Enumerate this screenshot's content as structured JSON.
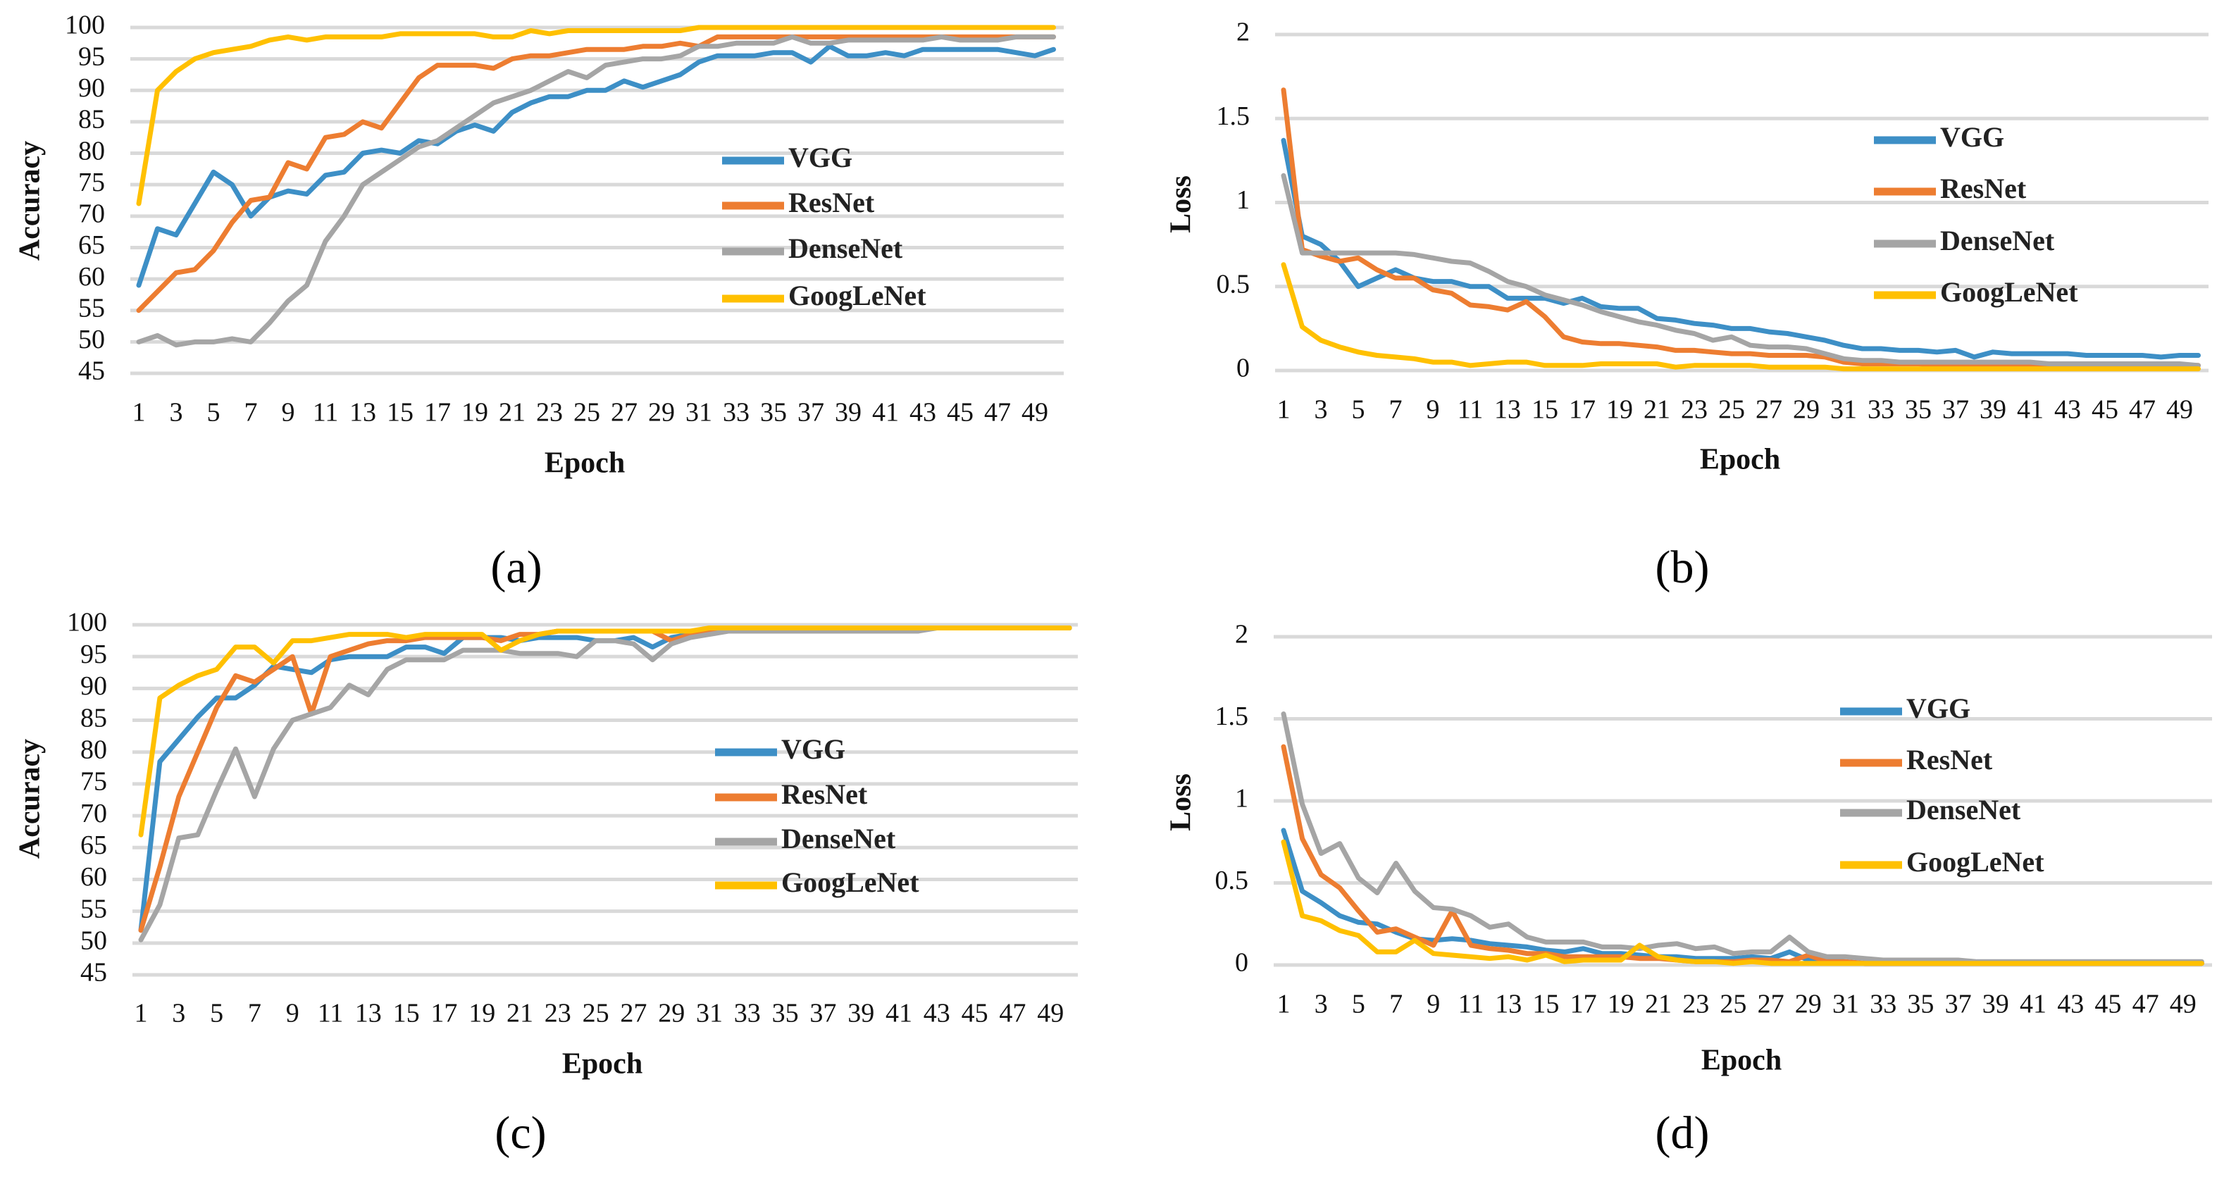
{
  "chart_data": [
    {
      "type": "line",
      "panel": "a",
      "panel_label": "(a)",
      "xlabel": "Epoch",
      "ylabel": "Accuracy",
      "ylim": [
        45,
        100
      ],
      "yticks": [
        45,
        50,
        55,
        60,
        65,
        70,
        75,
        80,
        85,
        90,
        95,
        100
      ],
      "xticks": [
        1,
        3,
        5,
        7,
        9,
        11,
        13,
        15,
        17,
        19,
        21,
        23,
        25,
        27,
        29,
        31,
        33,
        35,
        37,
        39,
        41,
        43,
        45,
        47,
        49
      ],
      "x_range": [
        1,
        50
      ],
      "grid": true,
      "legend": "right-middle",
      "series": [
        {
          "name": "VGG",
          "color": "#3d8fc6",
          "values": [
            59,
            68,
            67,
            72,
            77,
            75,
            70,
            73,
            74,
            73.5,
            76.5,
            77,
            80,
            80.5,
            80,
            82,
            81.5,
            83.5,
            84.5,
            83.5,
            86.5,
            88,
            89,
            89,
            90,
            90,
            91.5,
            90.5,
            91.5,
            92.5,
            94.5,
            95.5,
            95.5,
            95.5,
            96,
            96,
            94.5,
            97,
            95.5,
            95.5,
            96,
            95.5,
            96.5,
            96.5,
            96.5,
            96.5,
            96.5,
            96,
            95.5,
            96.5
          ]
        },
        {
          "name": "ResNet",
          "color": "#ed7d31",
          "values": [
            55,
            58,
            61,
            61.5,
            64.5,
            69,
            72.5,
            73,
            78.5,
            77.5,
            82.5,
            83,
            85,
            84,
            88,
            92,
            94,
            94,
            94,
            93.5,
            95,
            95.5,
            95.5,
            96,
            96.5,
            96.5,
            96.5,
            97,
            97,
            97.5,
            97,
            98.5,
            98.5,
            98.5,
            98.5,
            98.5,
            98.5,
            98.5,
            98.5,
            98.5,
            98.5,
            98.5,
            98.5,
            98.5,
            98.5,
            98.5,
            98.5,
            98.5,
            98.5,
            98.5
          ]
        },
        {
          "name": "DenseNet",
          "color": "#a5a5a5",
          "values": [
            50,
            51,
            49.5,
            50,
            50,
            50.5,
            50,
            53,
            56.5,
            59,
            66,
            70,
            75,
            77,
            79,
            81,
            82,
            84,
            86,
            88,
            89,
            90,
            91.5,
            93,
            92,
            94,
            94.5,
            95,
            95,
            95.5,
            97,
            97,
            97.5,
            97.5,
            97.5,
            98.5,
            97.5,
            97.5,
            98,
            98,
            98,
            98,
            98,
            98.5,
            98,
            98,
            98,
            98.5,
            98.5,
            98.5
          ]
        },
        {
          "name": "GoogLeNet",
          "color": "#ffc000",
          "values": [
            72,
            90,
            93,
            95,
            96,
            96.5,
            97,
            98,
            98.5,
            98,
            98.5,
            98.5,
            98.5,
            98.5,
            99,
            99,
            99,
            99,
            99,
            98.5,
            98.5,
            99.5,
            99,
            99.5,
            99.5,
            99.5,
            99.5,
            99.5,
            99.5,
            99.5,
            100,
            100,
            100,
            100,
            100,
            100,
            100,
            100,
            100,
            100,
            100,
            100,
            100,
            100,
            100,
            100,
            100,
            100,
            100,
            100
          ]
        }
      ]
    },
    {
      "type": "line",
      "panel": "b",
      "panel_label": "(b)",
      "xlabel": "Epoch",
      "ylabel": "Loss",
      "ylim": [
        0,
        2
      ],
      "yticks": [
        "0",
        "0.5",
        "1",
        "1.5",
        "2"
      ],
      "xticks": [
        1,
        3,
        5,
        7,
        9,
        11,
        13,
        15,
        17,
        19,
        21,
        23,
        25,
        27,
        29,
        31,
        33,
        35,
        37,
        39,
        41,
        43,
        45,
        47,
        49
      ],
      "x_range": [
        1,
        50
      ],
      "grid": true,
      "legend": "right-middle",
      "series": [
        {
          "name": "VGG",
          "color": "#3d8fc6",
          "values": [
            1.37,
            0.8,
            0.75,
            0.65,
            0.5,
            0.55,
            0.6,
            0.55,
            0.53,
            0.53,
            0.5,
            0.5,
            0.43,
            0.43,
            0.43,
            0.4,
            0.43,
            0.38,
            0.37,
            0.37,
            0.31,
            0.3,
            0.28,
            0.27,
            0.25,
            0.25,
            0.23,
            0.22,
            0.2,
            0.18,
            0.15,
            0.13,
            0.13,
            0.12,
            0.12,
            0.11,
            0.12,
            0.08,
            0.11,
            0.1,
            0.1,
            0.1,
            0.1,
            0.09,
            0.09,
            0.09,
            0.09,
            0.08,
            0.09,
            0.09
          ]
        },
        {
          "name": "ResNet",
          "color": "#ed7d31",
          "values": [
            1.67,
            0.72,
            0.68,
            0.65,
            0.67,
            0.6,
            0.55,
            0.55,
            0.48,
            0.46,
            0.39,
            0.38,
            0.36,
            0.41,
            0.32,
            0.2,
            0.17,
            0.16,
            0.16,
            0.15,
            0.14,
            0.12,
            0.12,
            0.11,
            0.1,
            0.1,
            0.09,
            0.09,
            0.09,
            0.08,
            0.05,
            0.04,
            0.04,
            0.04,
            0.04,
            0.03,
            0.03,
            0.03,
            0.03,
            0.03,
            0.03,
            0.03,
            0.03,
            0.03,
            0.03,
            0.03,
            0.03,
            0.03,
            0.03,
            0.03
          ]
        },
        {
          "name": "DenseNet",
          "color": "#a5a5a5",
          "values": [
            1.16,
            0.7,
            0.7,
            0.7,
            0.7,
            0.7,
            0.7,
            0.69,
            0.67,
            0.65,
            0.64,
            0.59,
            0.53,
            0.5,
            0.45,
            0.42,
            0.39,
            0.35,
            0.32,
            0.29,
            0.27,
            0.24,
            0.22,
            0.18,
            0.2,
            0.15,
            0.14,
            0.14,
            0.13,
            0.1,
            0.07,
            0.06,
            0.06,
            0.05,
            0.05,
            0.05,
            0.05,
            0.05,
            0.05,
            0.05,
            0.05,
            0.04,
            0.04,
            0.04,
            0.04,
            0.04,
            0.04,
            0.04,
            0.04,
            0.03
          ]
        },
        {
          "name": "GoogLeNet",
          "color": "#ffc000",
          "values": [
            0.63,
            0.26,
            0.18,
            0.14,
            0.11,
            0.09,
            0.08,
            0.07,
            0.05,
            0.05,
            0.03,
            0.04,
            0.05,
            0.05,
            0.03,
            0.03,
            0.03,
            0.04,
            0.04,
            0.04,
            0.04,
            0.02,
            0.03,
            0.03,
            0.03,
            0.03,
            0.02,
            0.02,
            0.02,
            0.02,
            0.01,
            0.01,
            0.01,
            0.01,
            0.01,
            0.01,
            0.01,
            0.01,
            0.01,
            0.01,
            0.01,
            0.01,
            0.01,
            0.01,
            0.01,
            0.01,
            0.01,
            0.01,
            0.01,
            0.01
          ]
        }
      ]
    },
    {
      "type": "line",
      "panel": "c",
      "panel_label": "(c)",
      "xlabel": "Epoch",
      "ylabel": "Accuracy",
      "ylim": [
        45,
        100
      ],
      "yticks": [
        45,
        50,
        55,
        60,
        65,
        70,
        75,
        80,
        85,
        90,
        95,
        100
      ],
      "xticks": [
        1,
        3,
        5,
        7,
        9,
        11,
        13,
        15,
        17,
        19,
        21,
        23,
        25,
        27,
        29,
        31,
        33,
        35,
        37,
        39,
        41,
        43,
        45,
        47,
        49
      ],
      "x_range": [
        1,
        50
      ],
      "grid": true,
      "legend": "right-middle",
      "series": [
        {
          "name": "VGG",
          "color": "#3d8fc6",
          "values": [
            52,
            78.5,
            82,
            85.5,
            88.5,
            88.5,
            90.5,
            93.5,
            93,
            92.5,
            94.5,
            95,
            95,
            95,
            96.5,
            96.5,
            95.5,
            98,
            98,
            98,
            97.5,
            98,
            98,
            98,
            97.5,
            97.5,
            98,
            96.5,
            98,
            98.5,
            99,
            99.5,
            99.5,
            99.5,
            99.5,
            99.5,
            99.5,
            99.5,
            99.5,
            99.5,
            99.5,
            99.5,
            99.5,
            99.5,
            99.5,
            99.5,
            99.5,
            99.5,
            99.5,
            99.5
          ]
        },
        {
          "name": "ResNet",
          "color": "#ed7d31",
          "values": [
            52,
            62,
            73,
            80,
            87,
            92,
            91,
            93,
            95,
            86,
            95,
            96,
            97,
            97.5,
            97.5,
            98,
            98,
            98,
            98,
            97.5,
            98.5,
            98.5,
            99,
            99,
            99,
            99,
            99,
            99,
            97.5,
            98.5,
            99,
            99.5,
            99.5,
            99.5,
            99.5,
            99.5,
            99.5,
            99.5,
            99.5,
            99.5,
            99.5,
            99.5,
            99.5,
            99.5,
            99.5,
            99.5,
            99.5,
            99.5,
            99.5,
            99.5
          ]
        },
        {
          "name": "DenseNet",
          "color": "#a5a5a5",
          "values": [
            50.5,
            56,
            66.5,
            67,
            74,
            80.5,
            73,
            80.5,
            85,
            86,
            87,
            90.5,
            89,
            93,
            94.5,
            94.5,
            94.5,
            96,
            96,
            96,
            95.5,
            95.5,
            95.5,
            95,
            97.5,
            97.5,
            97,
            94.5,
            97,
            98,
            98.5,
            99,
            99,
            99,
            99,
            99,
            99,
            99,
            99,
            99,
            99,
            99,
            99.5,
            99.5,
            99.5,
            99.5,
            99.5,
            99.5,
            99.5,
            99.5
          ]
        },
        {
          "name": "GoogLeNet",
          "color": "#ffc000",
          "values": [
            67,
            88.5,
            90.5,
            92,
            93,
            96.5,
            96.5,
            94,
            97.5,
            97.5,
            98,
            98.5,
            98.5,
            98.5,
            98,
            98.5,
            98.5,
            98.5,
            98.5,
            96,
            97.5,
            98.5,
            99,
            99,
            99,
            99,
            99,
            99,
            99,
            99,
            99.5,
            99.5,
            99.5,
            99.5,
            99.5,
            99.5,
            99.5,
            99.5,
            99.5,
            99.5,
            99.5,
            99.5,
            99.5,
            99.5,
            99.5,
            99.5,
            99.5,
            99.5,
            99.5,
            99.5
          ]
        }
      ]
    },
    {
      "type": "line",
      "panel": "d",
      "panel_label": "(d)",
      "xlabel": "Epoch",
      "ylabel": "Loss",
      "ylim": [
        0,
        2
      ],
      "yticks": [
        "0",
        "0.5",
        "1",
        "1.5",
        "2"
      ],
      "xticks": [
        1,
        3,
        5,
        7,
        9,
        11,
        13,
        15,
        17,
        19,
        21,
        23,
        25,
        27,
        29,
        31,
        33,
        35,
        37,
        39,
        41,
        43,
        45,
        47,
        49
      ],
      "x_range": [
        1,
        50
      ],
      "grid": true,
      "legend": "right-middle",
      "series": [
        {
          "name": "VGG",
          "color": "#3d8fc6",
          "values": [
            0.82,
            0.45,
            0.38,
            0.3,
            0.26,
            0.25,
            0.2,
            0.16,
            0.15,
            0.16,
            0.15,
            0.13,
            0.12,
            0.11,
            0.09,
            0.08,
            0.1,
            0.07,
            0.07,
            0.06,
            0.05,
            0.05,
            0.04,
            0.04,
            0.04,
            0.05,
            0.04,
            0.08,
            0.03,
            0.03,
            0.02,
            0.01,
            0.01,
            0.01,
            0.01,
            0.01,
            0.01,
            0.01,
            0.01,
            0.01,
            0.01,
            0.01,
            0.01,
            0.01,
            0.01,
            0.01,
            0.01,
            0.01,
            0.01,
            0.01
          ]
        },
        {
          "name": "ResNet",
          "color": "#ed7d31",
          "values": [
            1.33,
            0.77,
            0.55,
            0.47,
            0.33,
            0.2,
            0.22,
            0.17,
            0.12,
            0.33,
            0.12,
            0.1,
            0.09,
            0.07,
            0.07,
            0.05,
            0.05,
            0.05,
            0.05,
            0.04,
            0.04,
            0.03,
            0.02,
            0.02,
            0.02,
            0.03,
            0.03,
            0.02,
            0.06,
            0.02,
            0.02,
            0.01,
            0.01,
            0.01,
            0.01,
            0.01,
            0.01,
            0.01,
            0.01,
            0.01,
            0.01,
            0.01,
            0.01,
            0.01,
            0.01,
            0.01,
            0.01,
            0.01,
            0.01,
            0.01
          ]
        },
        {
          "name": "DenseNet",
          "color": "#a5a5a5",
          "values": [
            1.53,
            0.98,
            0.68,
            0.74,
            0.53,
            0.44,
            0.62,
            0.45,
            0.35,
            0.34,
            0.3,
            0.23,
            0.25,
            0.17,
            0.14,
            0.14,
            0.14,
            0.11,
            0.11,
            0.1,
            0.12,
            0.13,
            0.1,
            0.11,
            0.07,
            0.08,
            0.08,
            0.17,
            0.08,
            0.05,
            0.05,
            0.04,
            0.03,
            0.03,
            0.03,
            0.03,
            0.03,
            0.02,
            0.02,
            0.02,
            0.02,
            0.02,
            0.02,
            0.02,
            0.02,
            0.02,
            0.02,
            0.02,
            0.02,
            0.02
          ]
        },
        {
          "name": "GoogLeNet",
          "color": "#ffc000",
          "values": [
            0.75,
            0.3,
            0.27,
            0.21,
            0.18,
            0.08,
            0.08,
            0.15,
            0.07,
            0.06,
            0.05,
            0.04,
            0.05,
            0.03,
            0.06,
            0.02,
            0.03,
            0.03,
            0.03,
            0.12,
            0.05,
            0.03,
            0.02,
            0.02,
            0.01,
            0.02,
            0.01,
            0.01,
            0.01,
            0.01,
            0.01,
            0.01,
            0.01,
            0.01,
            0.01,
            0.01,
            0.01,
            0.01,
            0.01,
            0.01,
            0.01,
            0.01,
            0.01,
            0.01,
            0.01,
            0.01,
            0.01,
            0.01,
            0.01,
            0.01
          ]
        }
      ]
    }
  ]
}
